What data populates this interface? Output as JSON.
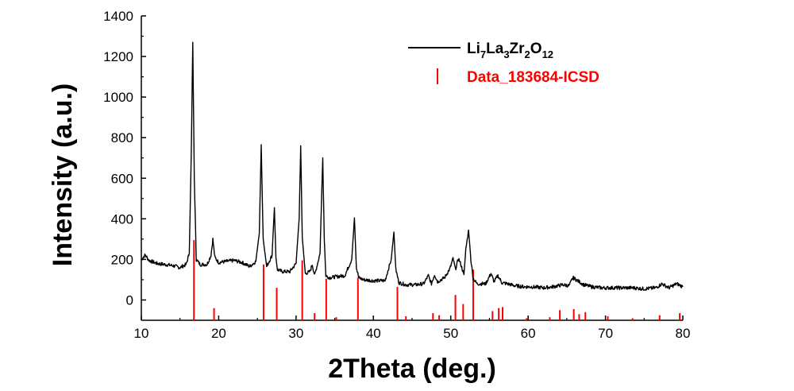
{
  "chart_data": {
    "type": "line",
    "xlabel": "2Theta (deg.)",
    "ylabel": "Intensity (a.u.)",
    "xlim": [
      10,
      80
    ],
    "ylim": [
      -100,
      1400
    ],
    "x_ticks": [
      "10",
      "20",
      "30",
      "40",
      "50",
      "60",
      "70",
      "80"
    ],
    "y_ticks": [
      "0",
      "200",
      "400",
      "600",
      "800",
      "1000",
      "1200",
      "1400"
    ],
    "grid": false,
    "legend_position": "top-right",
    "colors": {
      "measured": "#000000",
      "reference": "#ff0000"
    },
    "legend": {
      "series1": {
        "base": [
          "Li",
          "La",
          "Zr",
          "O"
        ],
        "sub": [
          "7",
          "3",
          "2",
          "12"
        ]
      },
      "series2": "Data_183684-ICSD"
    },
    "series": [
      {
        "name": "Li7La3Zr2O12",
        "style": "line",
        "x": [
          10,
          10.5,
          11,
          12,
          13,
          14,
          15,
          15.8,
          16.2,
          16.45,
          16.65,
          16.85,
          17.1,
          17.6,
          18.5,
          19.0,
          19.25,
          19.5,
          20,
          21,
          22,
          23,
          24,
          24.8,
          25.25,
          25.5,
          25.75,
          26.2,
          26.9,
          27.2,
          27.4,
          27.6,
          28.2,
          29.2,
          30.0,
          30.4,
          30.6,
          30.8,
          31.2,
          31.8,
          32.1,
          32.4,
          33.1,
          33.45,
          33.65,
          33.85,
          34.3,
          35.2,
          36.3,
          37.2,
          37.55,
          37.8,
          38.1,
          38.7,
          40.0,
          41.5,
          42.3,
          42.65,
          42.9,
          43.3,
          44.2,
          45.5,
          46.5,
          47.1,
          47.5,
          47.9,
          48.3,
          49.2,
          49.9,
          50.3,
          50.6,
          51.0,
          51.3,
          51.7,
          51.95,
          52.3,
          52.6,
          52.9,
          53.4,
          54.5,
          55.2,
          55.6,
          56.1,
          56.6,
          57.3,
          58.3,
          59.5,
          60.5,
          62.0,
          63.2,
          64.5,
          65.3,
          65.8,
          66.4,
          67.2,
          68.2,
          69.5,
          70.5,
          72.0,
          73.5,
          75.0,
          76.5,
          77.3,
          78.2,
          79.2,
          80
        ],
        "y": [
          200,
          222,
          195,
          180,
          175,
          170,
          160,
          175,
          230,
          700,
          1270,
          600,
          200,
          175,
          175,
          220,
          300,
          210,
          185,
          190,
          195,
          185,
          165,
          190,
          330,
          765,
          300,
          165,
          220,
          455,
          210,
          150,
          140,
          140,
          180,
          400,
          760,
          310,
          130,
          140,
          175,
          120,
          230,
          700,
          300,
          120,
          110,
          115,
          120,
          200,
          405,
          160,
          110,
          100,
          95,
          95,
          200,
          335,
          150,
          85,
          75,
          75,
          80,
          120,
          80,
          125,
          90,
          110,
          155,
          205,
          150,
          205,
          175,
          125,
          250,
          345,
          200,
          105,
          80,
          80,
          130,
          90,
          120,
          85,
          80,
          70,
          65,
          65,
          60,
          65,
          75,
          70,
          110,
          95,
          75,
          65,
          60,
          60,
          60,
          60,
          55,
          60,
          80,
          60,
          80,
          65
        ]
      },
      {
        "name": "Data_183684-ICSD",
        "style": "stick",
        "x": [
          16.8,
          19.4,
          25.8,
          27.5,
          30.8,
          32.4,
          33.9,
          35.2,
          38.0,
          43.1,
          44.2,
          47.7,
          48.5,
          50.6,
          51.6,
          52.9,
          55.4,
          56.2,
          56.7,
          59.8,
          62.8,
          64.1,
          65.9,
          66.6,
          67.4,
          70.3,
          73.5,
          77.0,
          79.6
        ],
        "y": [
          395,
          60,
          275,
          160,
          295,
          35,
          205,
          15,
          210,
          165,
          20,
          35,
          25,
          125,
          80,
          250,
          45,
          60,
          65,
          10,
          15,
          50,
          55,
          30,
          40,
          20,
          10,
          25,
          35
        ]
      }
    ]
  }
}
